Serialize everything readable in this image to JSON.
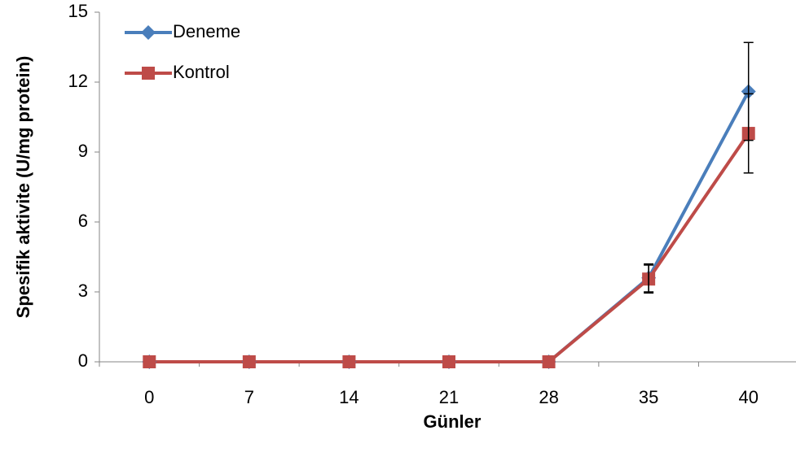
{
  "chart_data": {
    "type": "line",
    "x_label": "Günler",
    "y_label": "Spesifik aktivite (U/mg protein)",
    "categories": [
      "0",
      "7",
      "14",
      "21",
      "28",
      "35",
      "40"
    ],
    "series": [
      {
        "name": "Deneme",
        "color": "#4a7ebb",
        "marker": "diamond",
        "values": [
          0,
          0,
          0,
          0,
          0,
          3.6,
          11.6
        ],
        "errors": [
          null,
          null,
          null,
          null,
          null,
          0.6,
          2.1
        ]
      },
      {
        "name": "Kontrol",
        "color": "#be4b48",
        "marker": "square",
        "values": [
          0,
          0,
          0,
          0,
          0,
          3.55,
          9.8
        ],
        "errors": [
          null,
          null,
          null,
          null,
          null,
          0.6,
          1.7
        ]
      }
    ],
    "ylim": [
      0,
      15
    ],
    "yticks": [
      0,
      3,
      6,
      9,
      12,
      15
    ],
    "legend": "upper left"
  }
}
